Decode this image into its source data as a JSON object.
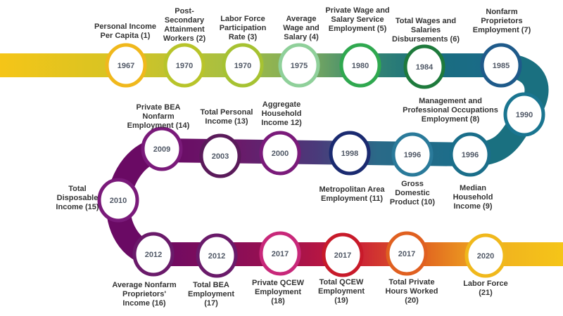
{
  "milestones": [
    {
      "year": "1967",
      "label": "Personal Income\nPer Capita  (1)",
      "color": "#f0b81c"
    },
    {
      "year": "1970",
      "label": "Post-\nSecondary\nAttainment\nWorkers (2)",
      "color": "#b8c42a"
    },
    {
      "year": "1970",
      "label": "Labor Force\nParticipation\nRate (3)",
      "color": "#a6c232"
    },
    {
      "year": "1975",
      "label": "Average\nWage and\nSalary (4)",
      "color": "#8fd09a"
    },
    {
      "year": "1980",
      "label": "Private Wage and\nSalary Service\nEmployment (5)",
      "color": "#2fa84f"
    },
    {
      "year": "1984",
      "label": "Total Wages and\nSalaries\nDisbursements (6)",
      "color": "#1e7a3c"
    },
    {
      "year": "1985",
      "label": "Nonfarm Proprietors\nEmployment (7)",
      "color": "#1e5a8a"
    },
    {
      "year": "1990",
      "label": "Management and\nProfessional Occupations\nEmployment (8)",
      "color": "#1a7590"
    },
    {
      "year": "1996",
      "label": "Median\nHousehold\nIncome (9)",
      "color": "#1a6e8a"
    },
    {
      "year": "1996",
      "label": "Gross\nDomestic\nProduct (10)",
      "color": "#2a7a9a"
    },
    {
      "year": "1998",
      "label": "Metropolitan Area\nEmployment (11)",
      "color": "#1a2a70"
    },
    {
      "year": "2000",
      "label": "Aggregate\nHousehold\nIncome 12)",
      "color": "#7a1a7a"
    },
    {
      "year": "2003",
      "label": "Total Personal\nIncome (13)",
      "color": "#5a1a5a"
    },
    {
      "year": "2009",
      "label": "Private BEA\nNonfarm\nEmployment (14)",
      "color": "#7a1a7a"
    },
    {
      "year": "2010",
      "label": "Total\nDisposable\nIncome (15)",
      "color": "#7a1a7a"
    },
    {
      "year": "2012",
      "label": "Average Nonfarm\nProprietors'\nIncome (16)",
      "color": "#6a1a6a"
    },
    {
      "year": "2012",
      "label": "Total BEA\nEmployment\n(17)",
      "color": "#6a1a6a"
    },
    {
      "year": "2017",
      "label": "Private QCEW\nEmployment\n(18)",
      "color": "#c8287a"
    },
    {
      "year": "2017",
      "label": "Total QCEW\nEmployment\n(19)",
      "color": "#c81a2a"
    },
    {
      "year": "2017",
      "label": "Total Private\nHours Worked\n(20)",
      "color": "#e06020"
    },
    {
      "year": "2020",
      "label": "Labor Force\n(21)",
      "color": "#f0b81c"
    }
  ]
}
